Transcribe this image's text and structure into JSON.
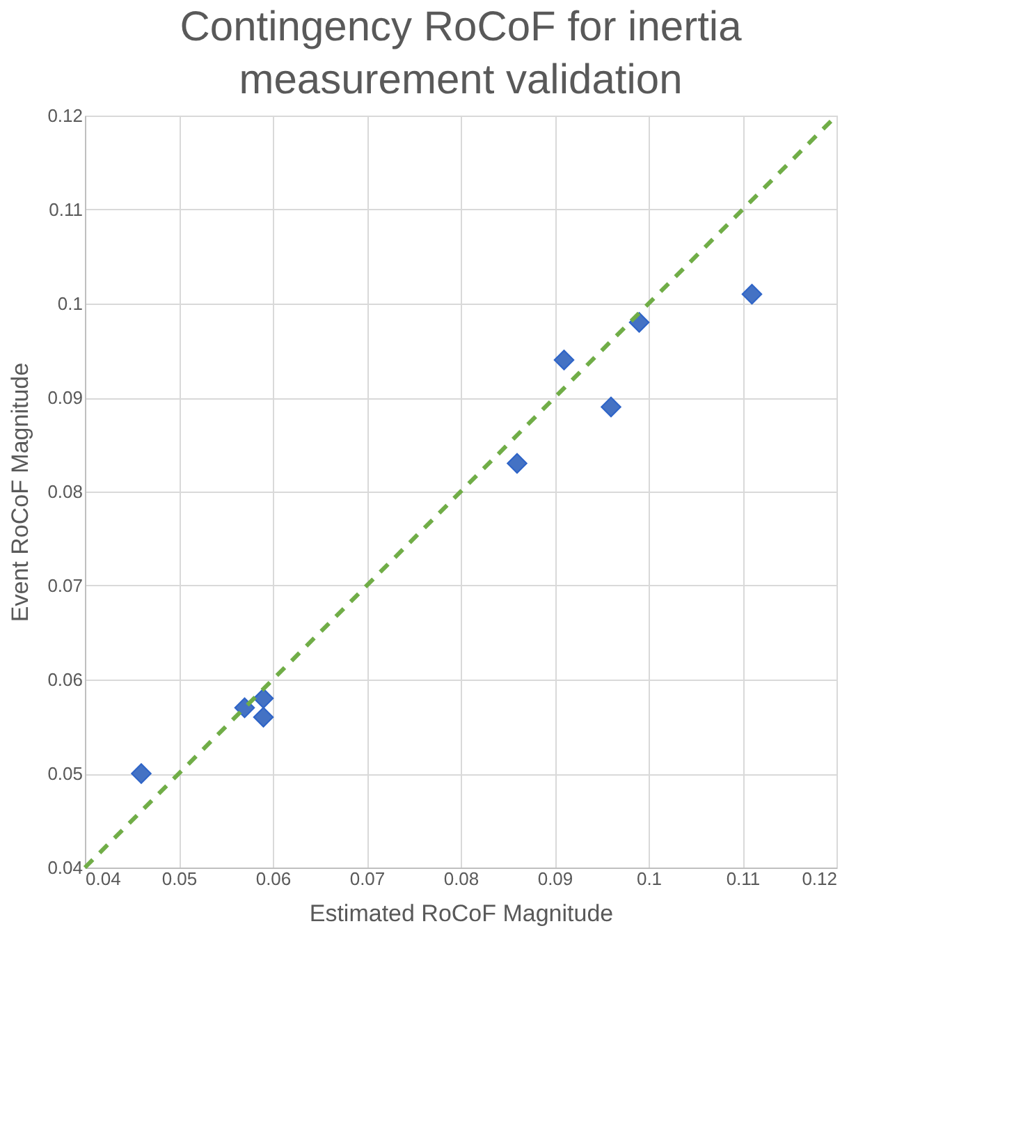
{
  "chart_data": {
    "type": "scatter",
    "title": "Contingency RoCoF for inertia measurement validation",
    "xlabel": "Estimated RoCoF Magnitude",
    "ylabel": "Event RoCoF Magnitude",
    "series": [
      {
        "type": "scatter",
        "color": "#4472c4",
        "marker": "diamond",
        "x": [
          0.046,
          0.057,
          0.059,
          0.059,
          0.086,
          0.091,
          0.096,
          0.099,
          0.111
        ],
        "values": [
          0.05,
          0.057,
          0.058,
          0.056,
          0.083,
          0.094,
          0.089,
          0.098,
          0.101
        ]
      },
      {
        "type": "line",
        "color": "#70ad47",
        "line_style": "dashed",
        "marker": "none",
        "x": [
          0.04,
          0.12
        ],
        "values": [
          0.04,
          0.12
        ]
      }
    ],
    "xlim": [
      0.04,
      0.12
    ],
    "xticks": [
      0.04,
      0.05,
      0.06,
      0.07,
      0.08,
      0.09,
      0.1,
      0.11,
      0.12
    ],
    "ylim": [
      0.04,
      0.12
    ],
    "yticks": [
      0.04,
      0.05,
      0.06,
      0.07,
      0.08,
      0.09,
      0.1,
      0.11,
      0.12
    ],
    "grid": true
  }
}
